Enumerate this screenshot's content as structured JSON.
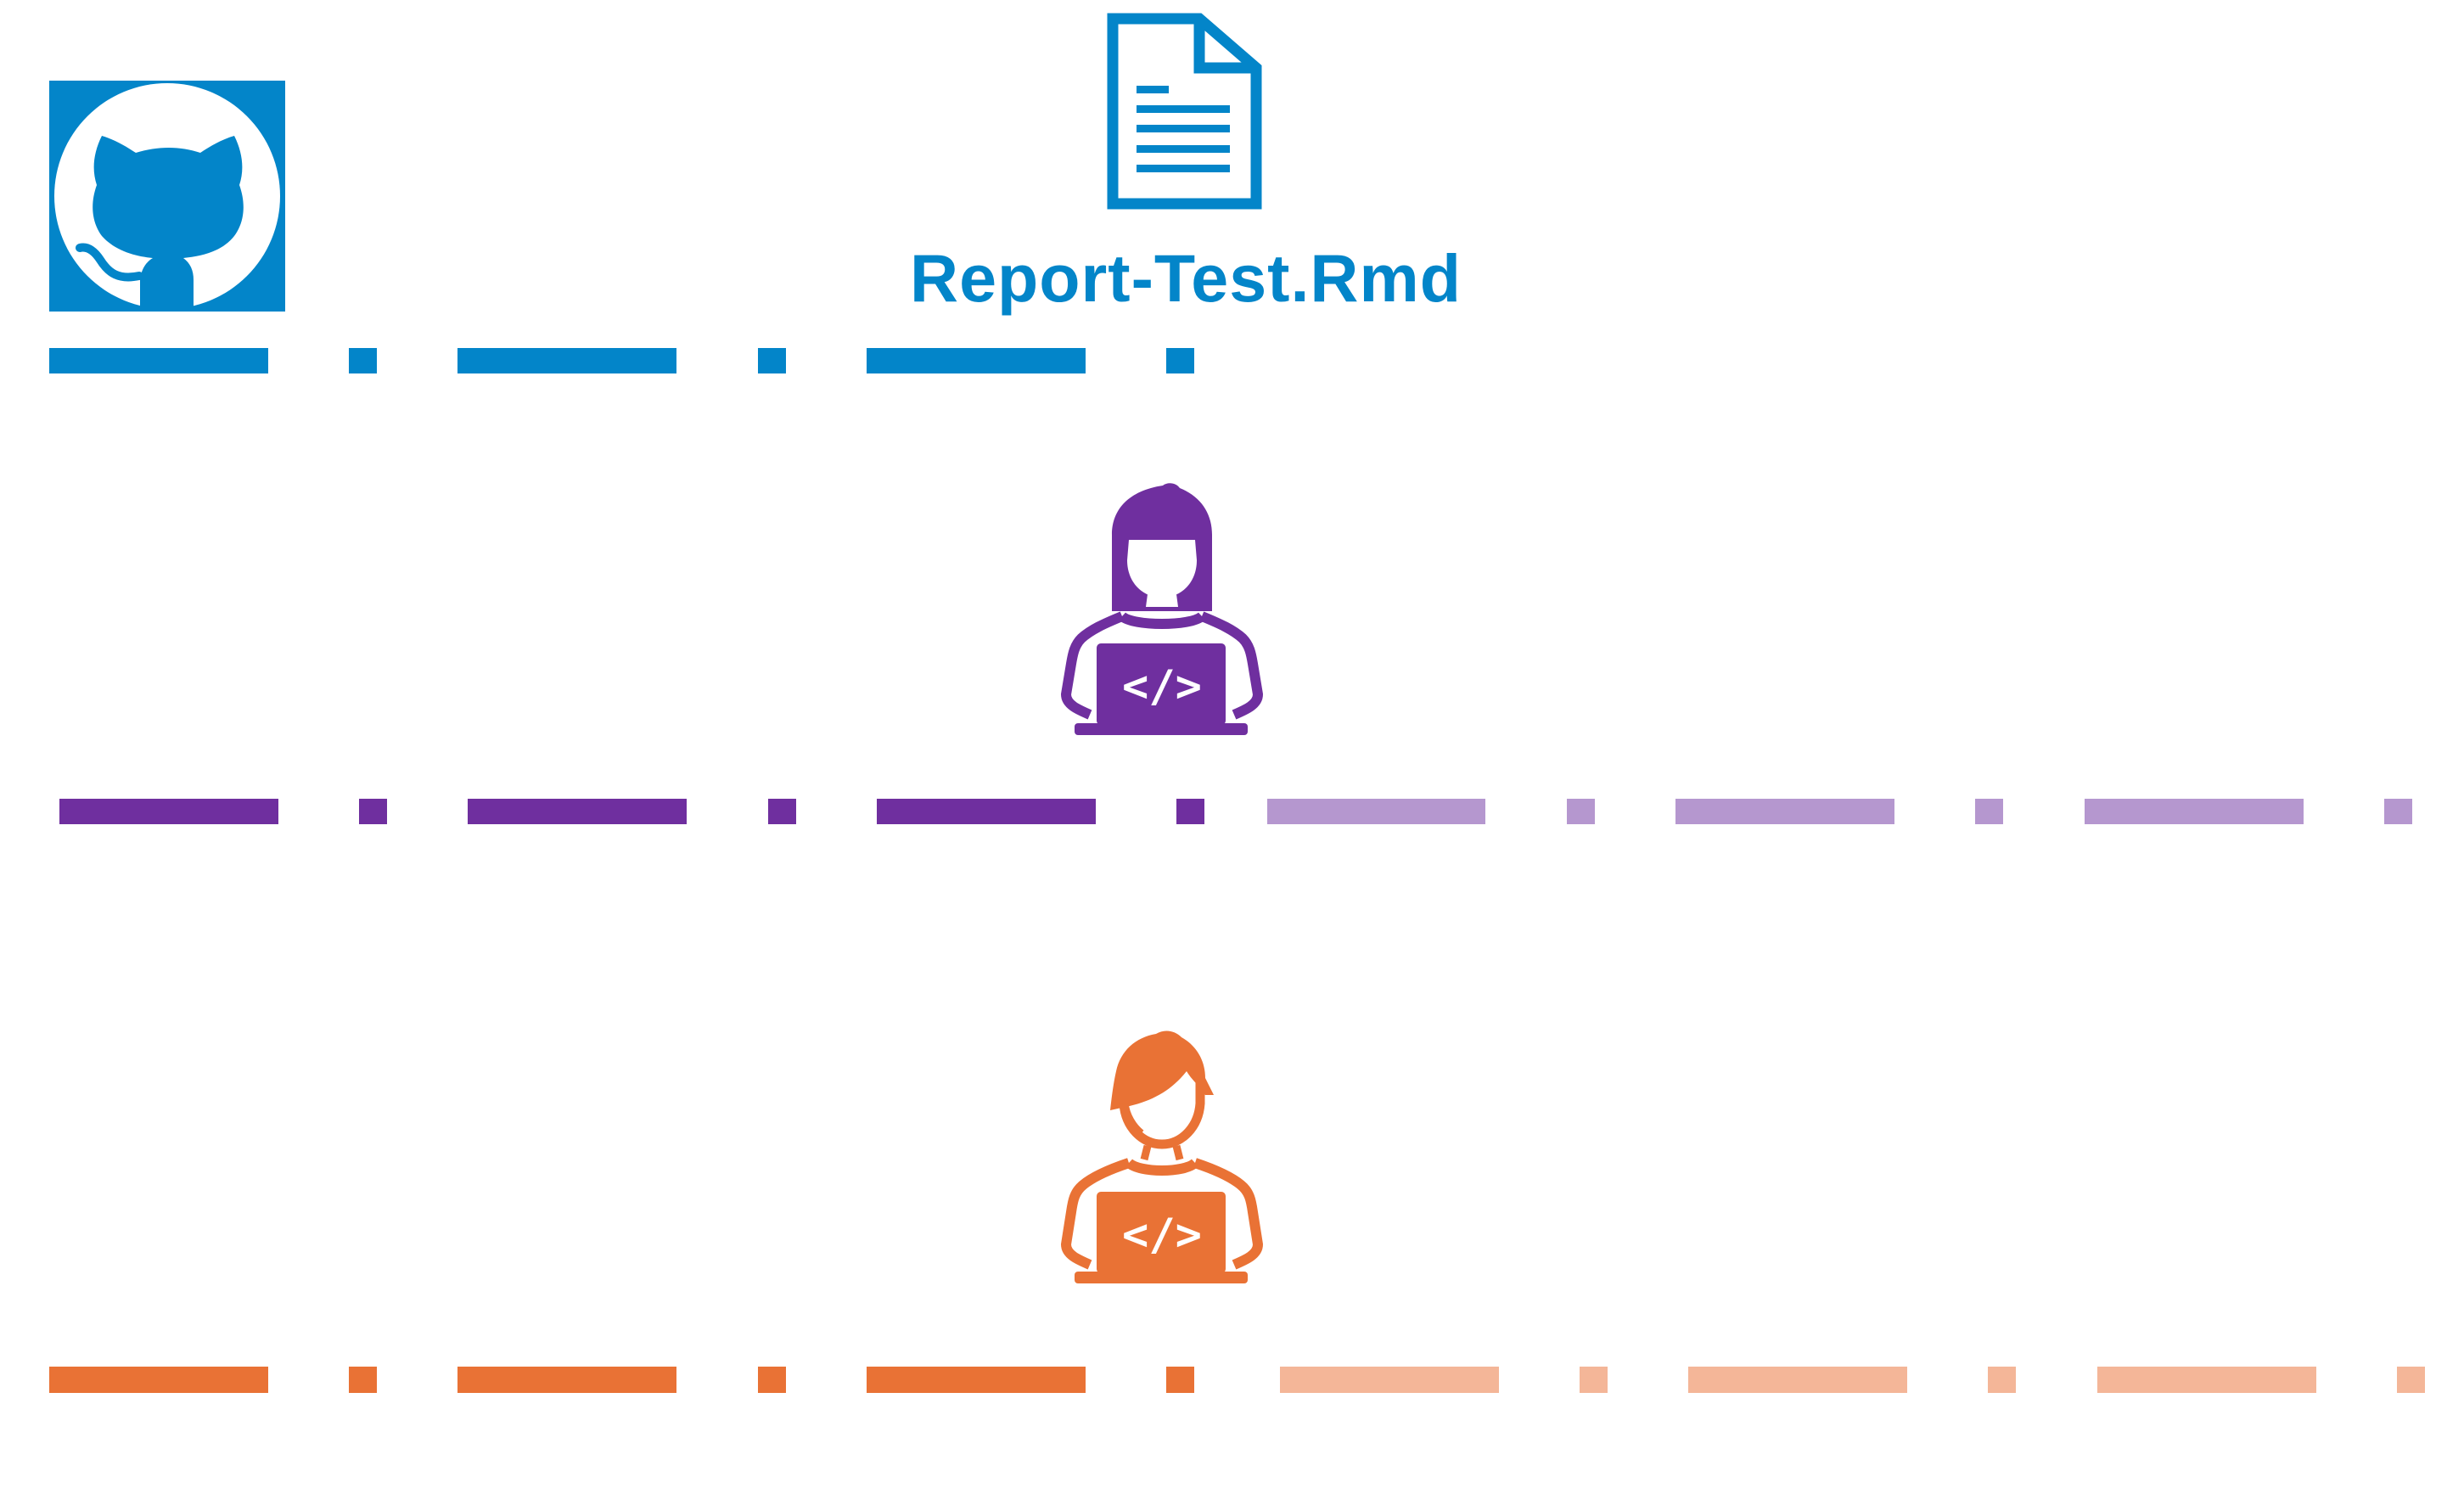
{
  "file": {
    "name": "Report-Test.Rmd",
    "icon": "document-icon"
  },
  "repo": {
    "icon": "github-icon"
  },
  "colors": {
    "repo": "#0385c9",
    "dev1": "#6f2f9f",
    "dev1_light": "#b597cf",
    "dev2": "#e97235",
    "dev2_light": "#f4b698",
    "background": "#ffffff"
  },
  "developers": [
    {
      "id": "dev1",
      "icon": "developer-woman-laptop-icon"
    },
    {
      "id": "dev2",
      "icon": "developer-man-laptop-icon"
    }
  ],
  "timelines": [
    {
      "id": "repo-timeline",
      "color_key": "repo",
      "style": "dash-dot",
      "segments": 1
    },
    {
      "id": "dev1-timeline",
      "color_key": "dev1",
      "style": "dash-dot",
      "segments": 2,
      "continuation_color_key": "dev1_light"
    },
    {
      "id": "dev2-timeline",
      "color_key": "dev2",
      "style": "dash-dot",
      "segments": 2,
      "continuation_color_key": "dev2_light"
    }
  ]
}
